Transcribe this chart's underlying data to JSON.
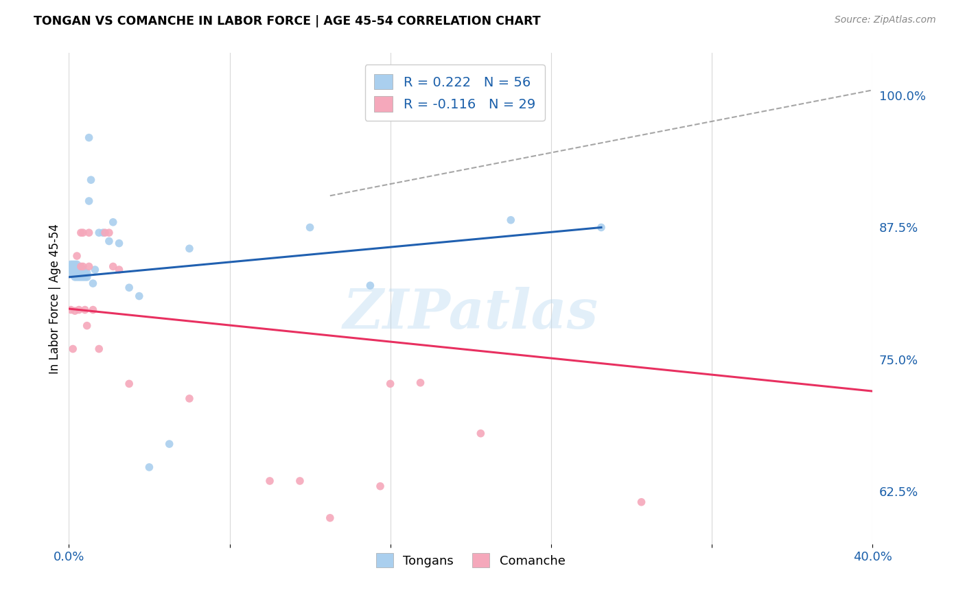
{
  "title": "TONGAN VS COMANCHE IN LABOR FORCE | AGE 45-54 CORRELATION CHART",
  "source": "Source: ZipAtlas.com",
  "ylabel": "In Labor Force | Age 45-54",
  "xlim": [
    0.0,
    0.4
  ],
  "ylim": [
    0.575,
    1.04
  ],
  "yticks_right": [
    0.625,
    0.75,
    0.875,
    1.0
  ],
  "yticks_right_labels": [
    "62.5%",
    "75.0%",
    "87.5%",
    "100.0%"
  ],
  "R_tongan": 0.222,
  "N_tongan": 56,
  "R_comanche": -0.116,
  "N_comanche": 29,
  "color_tongan": "#aacfee",
  "color_comanche": "#f5a8bb",
  "color_tongan_line": "#2060b0",
  "color_comanche_line": "#e83060",
  "color_text_blue": "#1a5faa",
  "watermark_text": "ZIPatlas",
  "background_color": "#ffffff",
  "grid_color": "#d8d8d8",
  "tongan_line_x0": 0.0,
  "tongan_line_y0": 0.828,
  "tongan_line_x1": 0.265,
  "tongan_line_y1": 0.875,
  "comanche_line_x0": 0.0,
  "comanche_line_y0": 0.798,
  "comanche_line_x1": 0.4,
  "comanche_line_y1": 0.72,
  "dash_line_x0": 0.13,
  "dash_line_y0": 0.905,
  "dash_line_x1": 0.4,
  "dash_line_y1": 1.005,
  "tongan_x": [
    0.001,
    0.001,
    0.001,
    0.002,
    0.002,
    0.002,
    0.002,
    0.002,
    0.003,
    0.003,
    0.003,
    0.003,
    0.003,
    0.003,
    0.003,
    0.004,
    0.004,
    0.004,
    0.004,
    0.004,
    0.004,
    0.005,
    0.005,
    0.005,
    0.005,
    0.005,
    0.006,
    0.006,
    0.006,
    0.006,
    0.007,
    0.007,
    0.007,
    0.008,
    0.008,
    0.009,
    0.009,
    0.01,
    0.01,
    0.011,
    0.012,
    0.013,
    0.015,
    0.017,
    0.02,
    0.022,
    0.025,
    0.03,
    0.035,
    0.04,
    0.05,
    0.06,
    0.12,
    0.15,
    0.22,
    0.265
  ],
  "tongan_y": [
    0.835,
    0.838,
    0.84,
    0.83,
    0.832,
    0.834,
    0.836,
    0.84,
    0.828,
    0.83,
    0.832,
    0.834,
    0.836,
    0.838,
    0.84,
    0.828,
    0.83,
    0.833,
    0.836,
    0.838,
    0.84,
    0.828,
    0.83,
    0.832,
    0.835,
    0.837,
    0.828,
    0.83,
    0.833,
    0.836,
    0.828,
    0.832,
    0.835,
    0.828,
    0.832,
    0.828,
    0.832,
    0.96,
    0.9,
    0.92,
    0.822,
    0.835,
    0.87,
    0.87,
    0.862,
    0.88,
    0.86,
    0.818,
    0.81,
    0.648,
    0.67,
    0.855,
    0.875,
    0.82,
    0.882,
    0.875
  ],
  "comanche_x": [
    0.001,
    0.002,
    0.003,
    0.004,
    0.005,
    0.006,
    0.006,
    0.007,
    0.007,
    0.008,
    0.009,
    0.01,
    0.01,
    0.012,
    0.015,
    0.018,
    0.02,
    0.022,
    0.025,
    0.03,
    0.06,
    0.1,
    0.115,
    0.13,
    0.155,
    0.16,
    0.175,
    0.205,
    0.285
  ],
  "comanche_y": [
    0.797,
    0.76,
    0.796,
    0.848,
    0.797,
    0.87,
    0.838,
    0.87,
    0.838,
    0.797,
    0.782,
    0.87,
    0.838,
    0.797,
    0.76,
    0.87,
    0.87,
    0.838,
    0.835,
    0.727,
    0.713,
    0.635,
    0.635,
    0.6,
    0.63,
    0.727,
    0.728,
    0.68,
    0.615
  ]
}
